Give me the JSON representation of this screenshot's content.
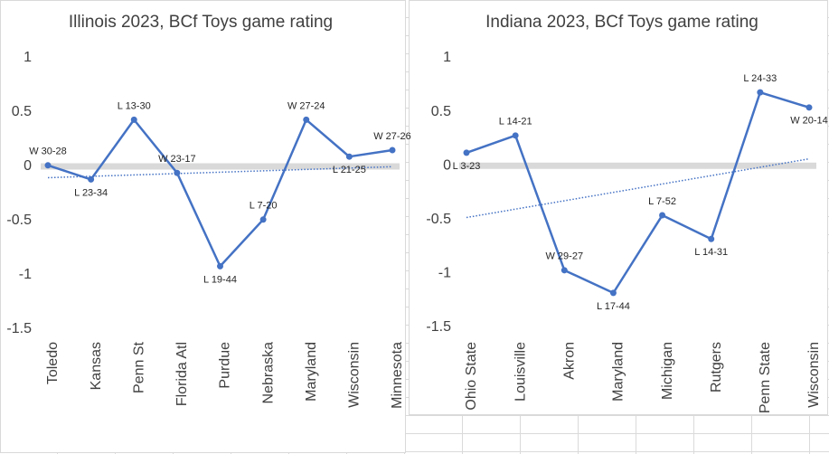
{
  "chart_data": [
    {
      "type": "line",
      "title": "Illinois 2023, BCf Toys game rating",
      "categories": [
        "Toledo",
        "Kansas",
        "Penn St",
        "Florida Atl",
        "Purdue",
        "Nebraska",
        "Maryland",
        "Wisconsin",
        "Minnesota"
      ],
      "values": [
        0.01,
        -0.12,
        0.43,
        -0.06,
        -0.92,
        -0.49,
        0.43,
        0.09,
        0.15
      ],
      "value_labels": [
        "W 30-28",
        "L 23-34",
        "L 13-30",
        "W 23-17",
        "L 19-44",
        "L 7-20",
        "W 27-24",
        "L 21-25",
        "W 27-26"
      ],
      "color": "#4472c4",
      "trendline": true,
      "zero_line_color": "#d9d9d9",
      "ylim": [
        -1.5,
        1
      ],
      "yticks": [
        -1.5,
        -1,
        -0.5,
        0,
        0.5,
        1
      ]
    },
    {
      "type": "line",
      "title": "Indiana 2023, BCf Toys game rating",
      "categories": [
        "Ohio State",
        "Louisville",
        "Akron",
        "Maryland",
        "Michigan",
        "Rutgers",
        "Penn State",
        "Wisconsin"
      ],
      "values": [
        0.12,
        0.28,
        -0.97,
        -1.18,
        -0.46,
        -0.68,
        0.68,
        0.54
      ],
      "value_labels": [
        "L 3-23",
        "L 14-21",
        "W 29-27",
        "L 17-44",
        "L 7-52",
        "L 14-31",
        "L 24-33",
        "W 20-14"
      ],
      "color": "#4472c4",
      "trendline": true,
      "zero_line_color": "#d9d9d9",
      "ylim": [
        -1.5,
        1
      ],
      "yticks": [
        -1.5,
        -1,
        -0.5,
        0,
        0.5,
        1
      ]
    }
  ]
}
